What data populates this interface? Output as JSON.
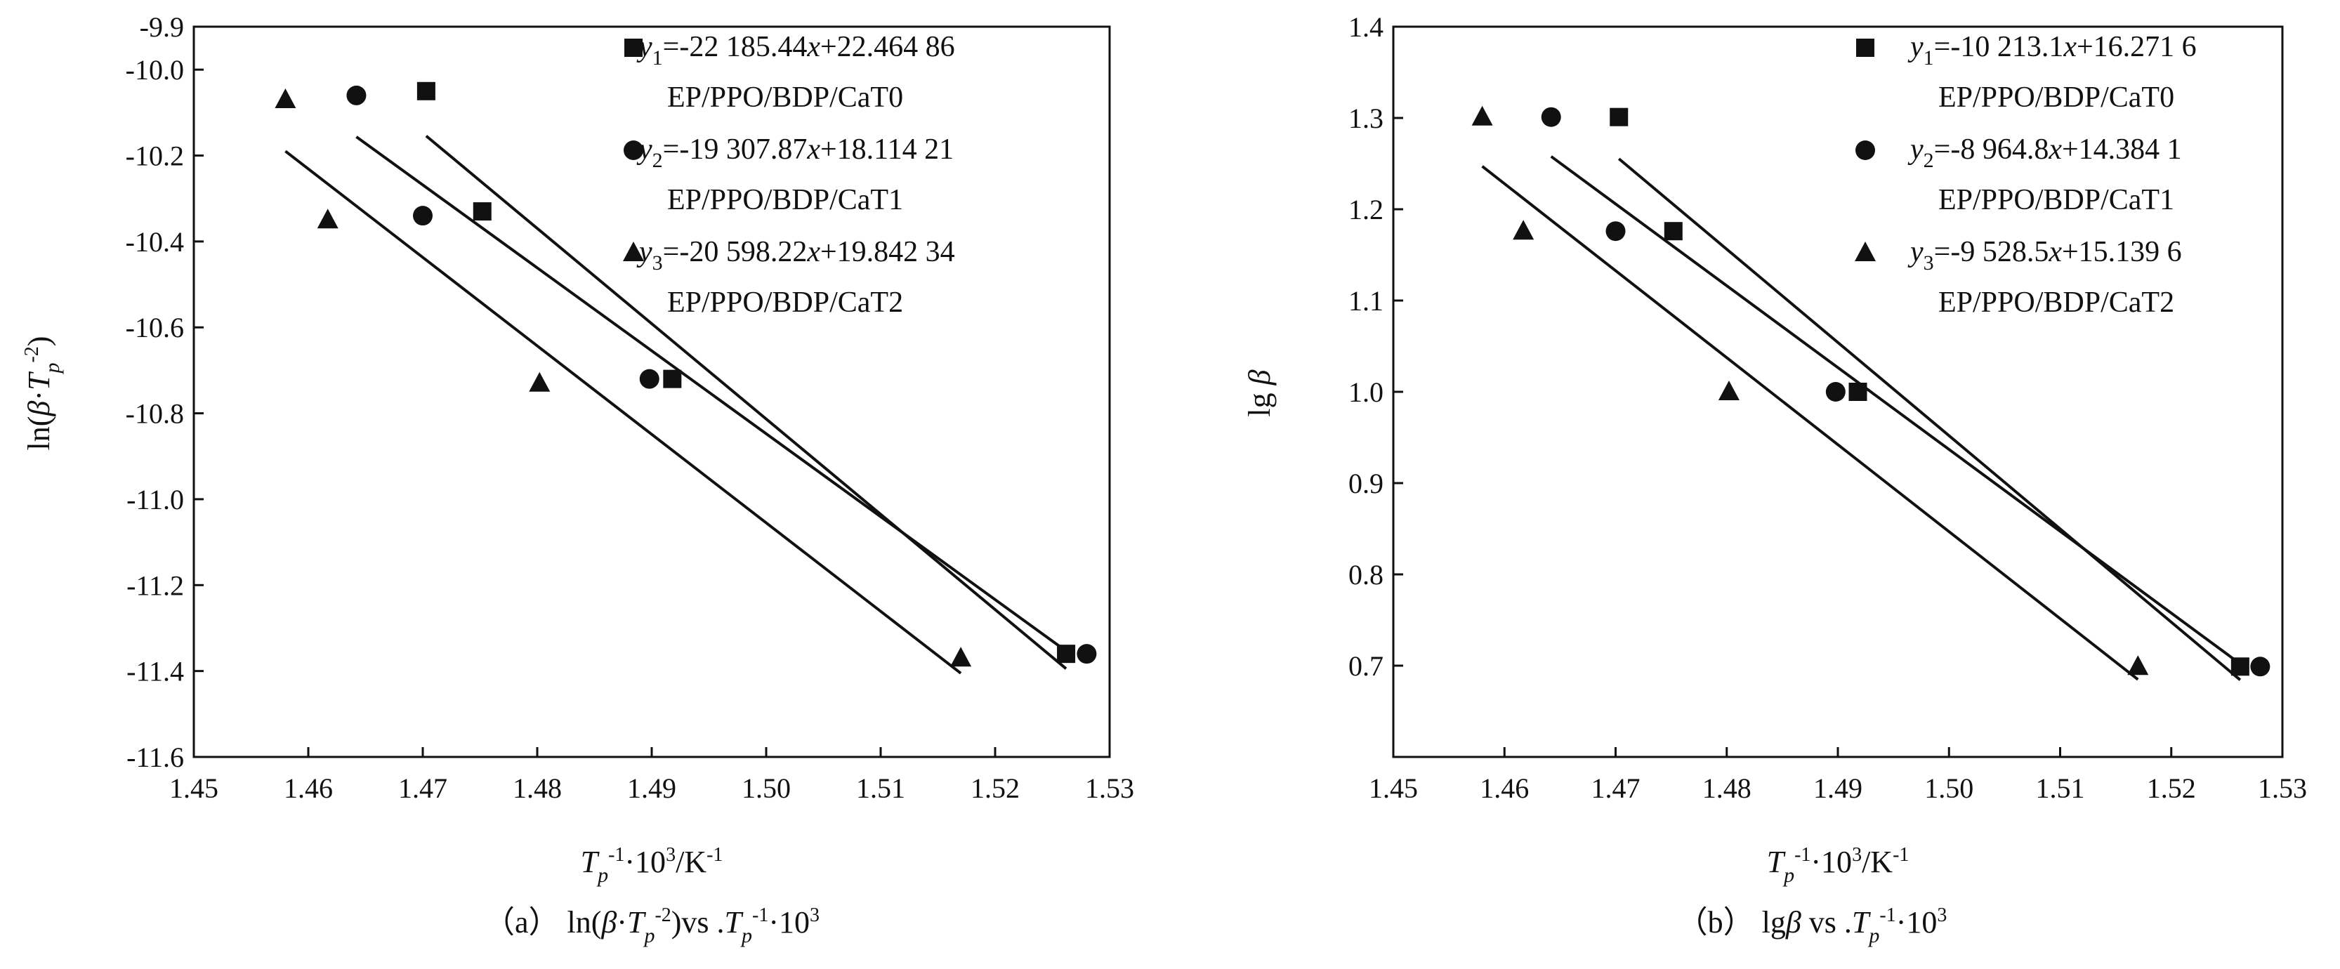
{
  "chart_data": [
    {
      "type": "scatter",
      "caption": "（a） ln(β·Tp⁻²)vs .Tp⁻¹·10³",
      "xlabel": "Tp⁻¹·10³/K⁻¹",
      "ylabel": "ln(β·Tp⁻²)",
      "xlim": [
        1.45,
        1.53
      ],
      "ylim": [
        -11.6,
        -9.9
      ],
      "xticks": [
        "1.45",
        "1.46",
        "1.47",
        "1.48",
        "1.49",
        "1.50",
        "1.51",
        "1.52",
        "1.53"
      ],
      "yticks": [
        "-9.9",
        "-10.0",
        "-10.2",
        "-10.4",
        "-10.6",
        "-10.8",
        "-11.0",
        "-11.2",
        "-11.4",
        "-11.6"
      ],
      "ytick_values": [
        -9.9,
        -10.0,
        -10.2,
        -10.4,
        -10.6,
        -10.8,
        -11.0,
        -11.2,
        -11.4,
        -11.6
      ],
      "legend_position": "top-right",
      "series": [
        {
          "name": "EP/PPO/BDP/CaT0",
          "equation": "y1=-22 185.44x+22.464 86",
          "marker": "square",
          "x": [
            1.4703,
            1.4752,
            1.4918,
            1.5262
          ],
          "y": [
            -10.05,
            -10.33,
            -10.72,
            -11.36
          ],
          "fit": {
            "slope": -22.18544,
            "intercept": 22.46486,
            "x_range": [
              1.4703,
              1.5262
            ]
          }
        },
        {
          "name": "EP/PPO/BDP/CaT1",
          "equation": "y2=-19 307.87x+18.114 21",
          "marker": "circle",
          "x": [
            1.4642,
            1.47,
            1.4898,
            1.528
          ],
          "y": [
            -10.06,
            -10.34,
            -10.72,
            -11.36
          ],
          "fit": {
            "slope": -19.30787,
            "intercept": 18.11421,
            "x_range": [
              1.4642,
              1.5262
            ]
          }
        },
        {
          "name": "EP/PPO/BDP/CaT2",
          "equation": "y3=-20 598.22x+19.842 34",
          "marker": "triangle",
          "x": [
            1.458,
            1.4617,
            1.4802,
            1.517
          ],
          "y": [
            -10.07,
            -10.35,
            -10.73,
            -11.37
          ],
          "fit": {
            "slope": -20.59822,
            "intercept": 19.84234,
            "x_range": [
              1.458,
              1.517
            ]
          }
        }
      ]
    },
    {
      "type": "scatter",
      "caption": "（b） lgβ vs .Tp⁻¹·10³",
      "xlabel": "Tp⁻¹·10³/K⁻¹",
      "ylabel": "lg β",
      "xlim": [
        1.45,
        1.53
      ],
      "ylim": [
        0.6,
        1.4
      ],
      "xticks": [
        "1.45",
        "1.46",
        "1.47",
        "1.48",
        "1.49",
        "1.50",
        "1.51",
        "1.52",
        "1.53"
      ],
      "yticks": [
        "1.4",
        "1.3",
        "1.2",
        "1.1",
        "1.0",
        "0.9",
        "0.8",
        "0.7"
      ],
      "ytick_values": [
        1.4,
        1.3,
        1.2,
        1.1,
        1.0,
        0.9,
        0.8,
        0.7
      ],
      "legend_position": "top-right",
      "series": [
        {
          "name": "EP/PPO/BDP/CaT0",
          "equation": "y1=-10 213.1x+16.271 6",
          "marker": "square",
          "x": [
            1.4703,
            1.4752,
            1.4918,
            1.5262
          ],
          "y": [
            1.301,
            1.176,
            1.0,
            0.699
          ],
          "fit": {
            "slope": -10.2131,
            "intercept": 16.2716,
            "x_range": [
              1.4703,
              1.5262
            ]
          }
        },
        {
          "name": "EP/PPO/BDP/CaT1",
          "equation": "y2=-8 964.8x+14.384 1",
          "marker": "circle",
          "x": [
            1.4642,
            1.47,
            1.4898,
            1.528
          ],
          "y": [
            1.301,
            1.176,
            1.0,
            0.699
          ],
          "fit": {
            "slope": -8.9648,
            "intercept": 14.3841,
            "x_range": [
              1.4642,
              1.5262
            ]
          }
        },
        {
          "name": "EP/PPO/BDP/CaT2",
          "equation": "y3=-9 528.5x+15.139 6",
          "marker": "triangle",
          "x": [
            1.458,
            1.4617,
            1.4802,
            1.517
          ],
          "y": [
            1.301,
            1.176,
            1.0,
            0.699
          ],
          "fit": {
            "slope": -9.5285,
            "intercept": 15.1396,
            "x_range": [
              1.458,
              1.517
            ]
          }
        }
      ]
    }
  ]
}
